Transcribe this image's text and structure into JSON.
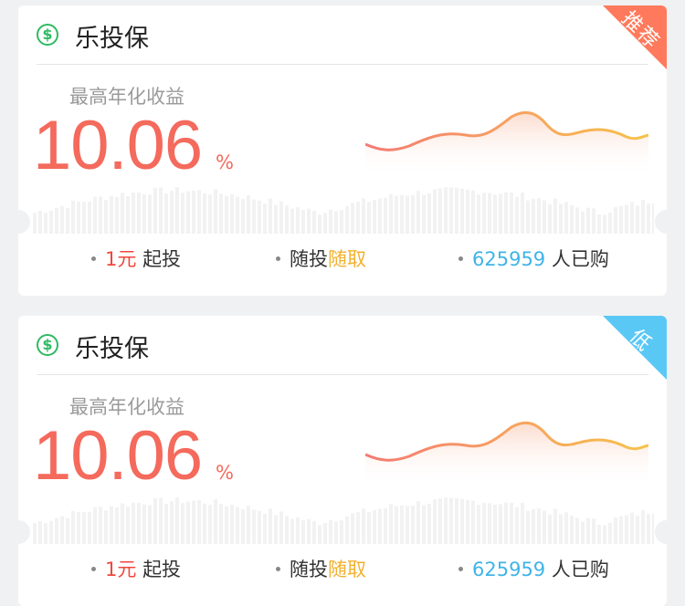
{
  "cards": [
    {
      "title": "乐投保",
      "icon": "dollar-circle-icon",
      "tag": {
        "text": "推荐",
        "color": "#ff7a5c"
      },
      "rate_label": "最高年化收益",
      "rate_value": "10.06",
      "rate_unit": "%",
      "features": {
        "min_amount": "1元",
        "min_suffix": "起投",
        "flex_prefix": "随投",
        "flex_highlight": "随取",
        "buyers_count": "625959",
        "buyers_suffix": "人已购"
      }
    },
    {
      "title": "乐投保",
      "icon": "dollar-circle-icon",
      "tag": {
        "text": "低",
        "color": "#5ac8f5"
      },
      "rate_label": "最高年化收益",
      "rate_value": "10.06",
      "rate_unit": "%",
      "features": {
        "min_amount": "1元",
        "min_suffix": "起投",
        "flex_prefix": "随投",
        "flex_highlight": "随取",
        "buyers_count": "625959",
        "buyers_suffix": "人已购"
      }
    }
  ],
  "colors": {
    "accent_red": "#f46a5c",
    "accent_yellow": "#f2b130",
    "accent_blue": "#3fb4e8",
    "brand_green": "#2dbb62"
  }
}
